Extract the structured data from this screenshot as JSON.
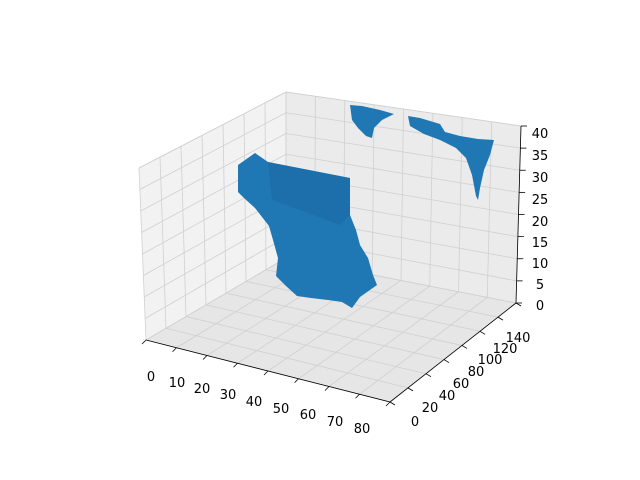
{
  "chart_data": {
    "type": "voxel",
    "title": "",
    "xlabel": "",
    "ylabel": "",
    "zlabel": "",
    "grid": true,
    "legend": false,
    "color": "#1f77b4",
    "pane_colors": [
      "#f2f2f2",
      "#e6e6e6",
      "#ebebeb"
    ],
    "grid_color": "#d0d0d0",
    "xlim": [
      0,
      80
    ],
    "ylim": [
      0,
      140
    ],
    "zlim": [
      0,
      40
    ],
    "x_ticks": [
      "0",
      "10",
      "20",
      "30",
      "40",
      "50",
      "60",
      "70",
      "80"
    ],
    "y_ticks": [
      "0",
      "20",
      "40",
      "60",
      "80",
      "100",
      "120",
      "140"
    ],
    "z_ticks": [
      "0",
      "5",
      "10",
      "15",
      "20",
      "25",
      "30",
      "35",
      "40"
    ]
  }
}
